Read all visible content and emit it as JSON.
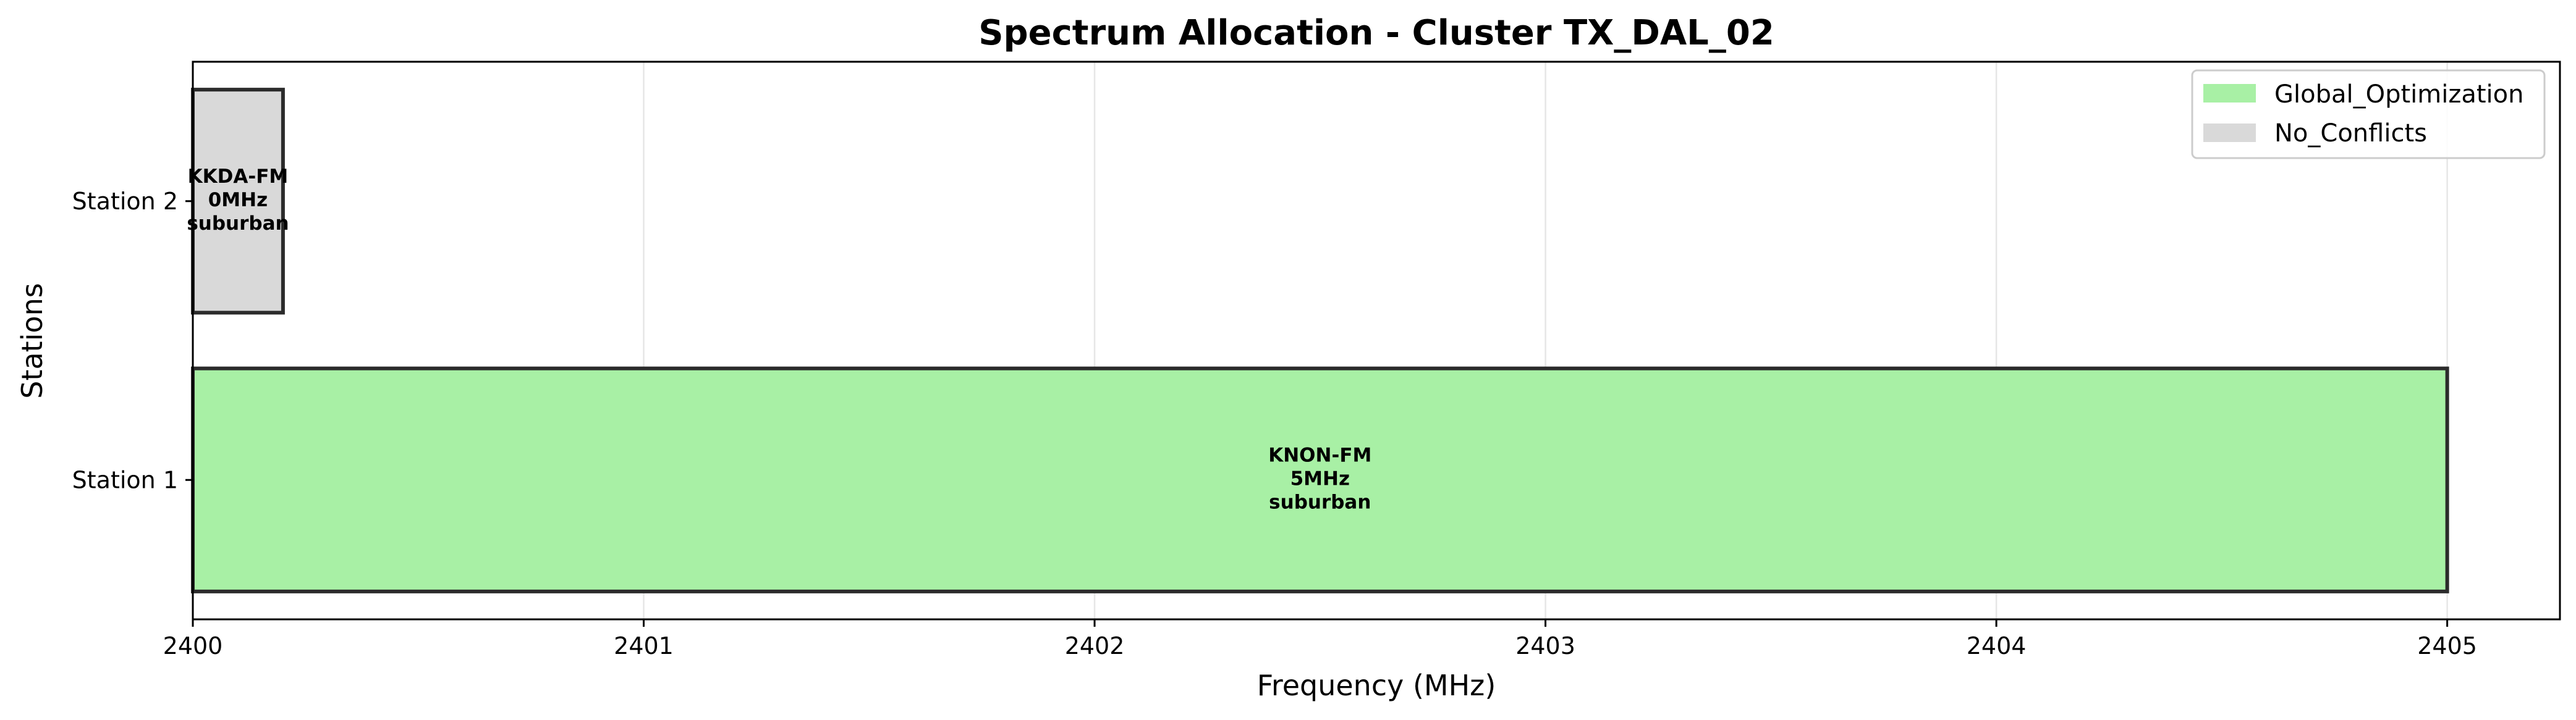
{
  "chart_data": {
    "type": "bar",
    "orientation": "horizontal",
    "title": "Spectrum Allocation - Cluster TX_DAL_02",
    "xlabel": "Frequency (MHz)",
    "ylabel": "Stations",
    "xlim": [
      2400,
      2405.25
    ],
    "xticks": [
      "2400",
      "2401",
      "2402",
      "2403",
      "2404",
      "2405"
    ],
    "categories": [
      "Station 1",
      "Station 2"
    ],
    "grid": true,
    "legend_position": "top-right",
    "legend": [
      {
        "label": "Global_Optimization",
        "color": "#a8f0a5"
      },
      {
        "label": "No_Conflicts",
        "color": "#d9d9d9"
      }
    ],
    "bars": [
      {
        "station": "Station 1",
        "start": 2400,
        "end": 2405,
        "name": "KNON-FM",
        "bandwidth": "5MHz",
        "area": "suburban",
        "category": "Global_Optimization",
        "color": "#a8f0a5"
      },
      {
        "station": "Station 2",
        "start": 2400,
        "end": 2400.2,
        "name": "KKDA-FM",
        "bandwidth": "0MHz",
        "area": "suburban",
        "category": "No_Conflicts",
        "color": "#d9d9d9"
      }
    ]
  }
}
